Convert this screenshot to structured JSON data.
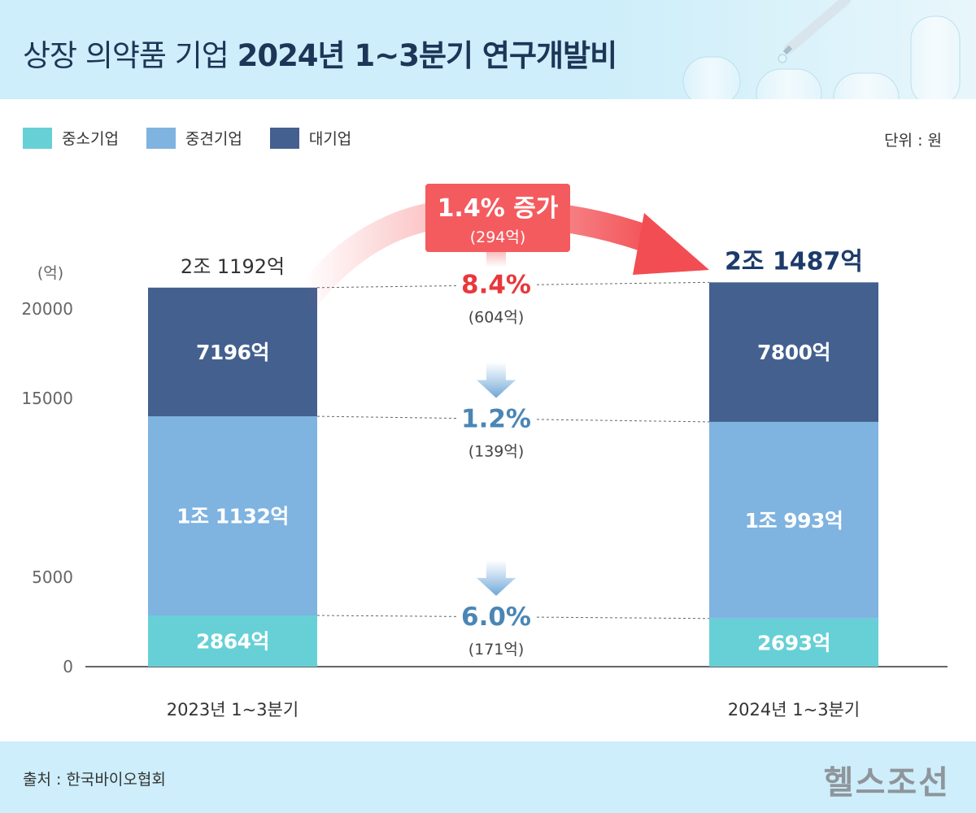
{
  "header": {
    "title_light": "상장 의약품 기업 ",
    "title_bold": "2024년 1~3분기 연구개발비"
  },
  "legend": [
    {
      "label": "중소기업",
      "color": "#66d0d6"
    },
    {
      "label": "중견기업",
      "color": "#7fb3e0"
    },
    {
      "label": "대기업",
      "color": "#43608f"
    }
  ],
  "unit": "단위 : 원",
  "footer": {
    "source": "출처 : 한국바이오협회",
    "logo": "헬스조선"
  },
  "chart_data": {
    "type": "bar",
    "stacked": true,
    "ylabel": "(억)",
    "ylim": [
      0,
      24000
    ],
    "yticks": [
      0,
      5000,
      15000,
      20000
    ],
    "categories": [
      "2023년 1~3분기",
      "2024년 1~3분기"
    ],
    "series": [
      {
        "name": "중소기업",
        "color": "#66d0d6",
        "values": [
          2864,
          2693
        ],
        "labels": [
          "2864억",
          "2693억"
        ]
      },
      {
        "name": "중견기업",
        "color": "#7fb3e0",
        "values": [
          11132,
          10993
        ],
        "labels": [
          "1조 1132억",
          "1조 993억"
        ]
      },
      {
        "name": "대기업",
        "color": "#43608f",
        "values": [
          7196,
          7800
        ],
        "labels": [
          "7196억",
          "7800억"
        ]
      }
    ],
    "totals": [
      21192,
      21487
    ],
    "total_labels": [
      "2조 1192억",
      "2조 1487억"
    ],
    "changes": [
      {
        "series": "대기업",
        "direction": "up",
        "percent": "8.4%",
        "amount": "(604억)",
        "color": "#e8383c"
      },
      {
        "series": "중견기업",
        "direction": "down",
        "percent": "1.2%",
        "amount": "(139억)",
        "color": "#4a86b5"
      },
      {
        "series": "중소기업",
        "direction": "down",
        "percent": "6.0%",
        "amount": "(171억)",
        "color": "#4a86b5"
      }
    ],
    "total_change": {
      "percent": "1.4%",
      "word": "증가",
      "amount": "(294억)"
    }
  }
}
